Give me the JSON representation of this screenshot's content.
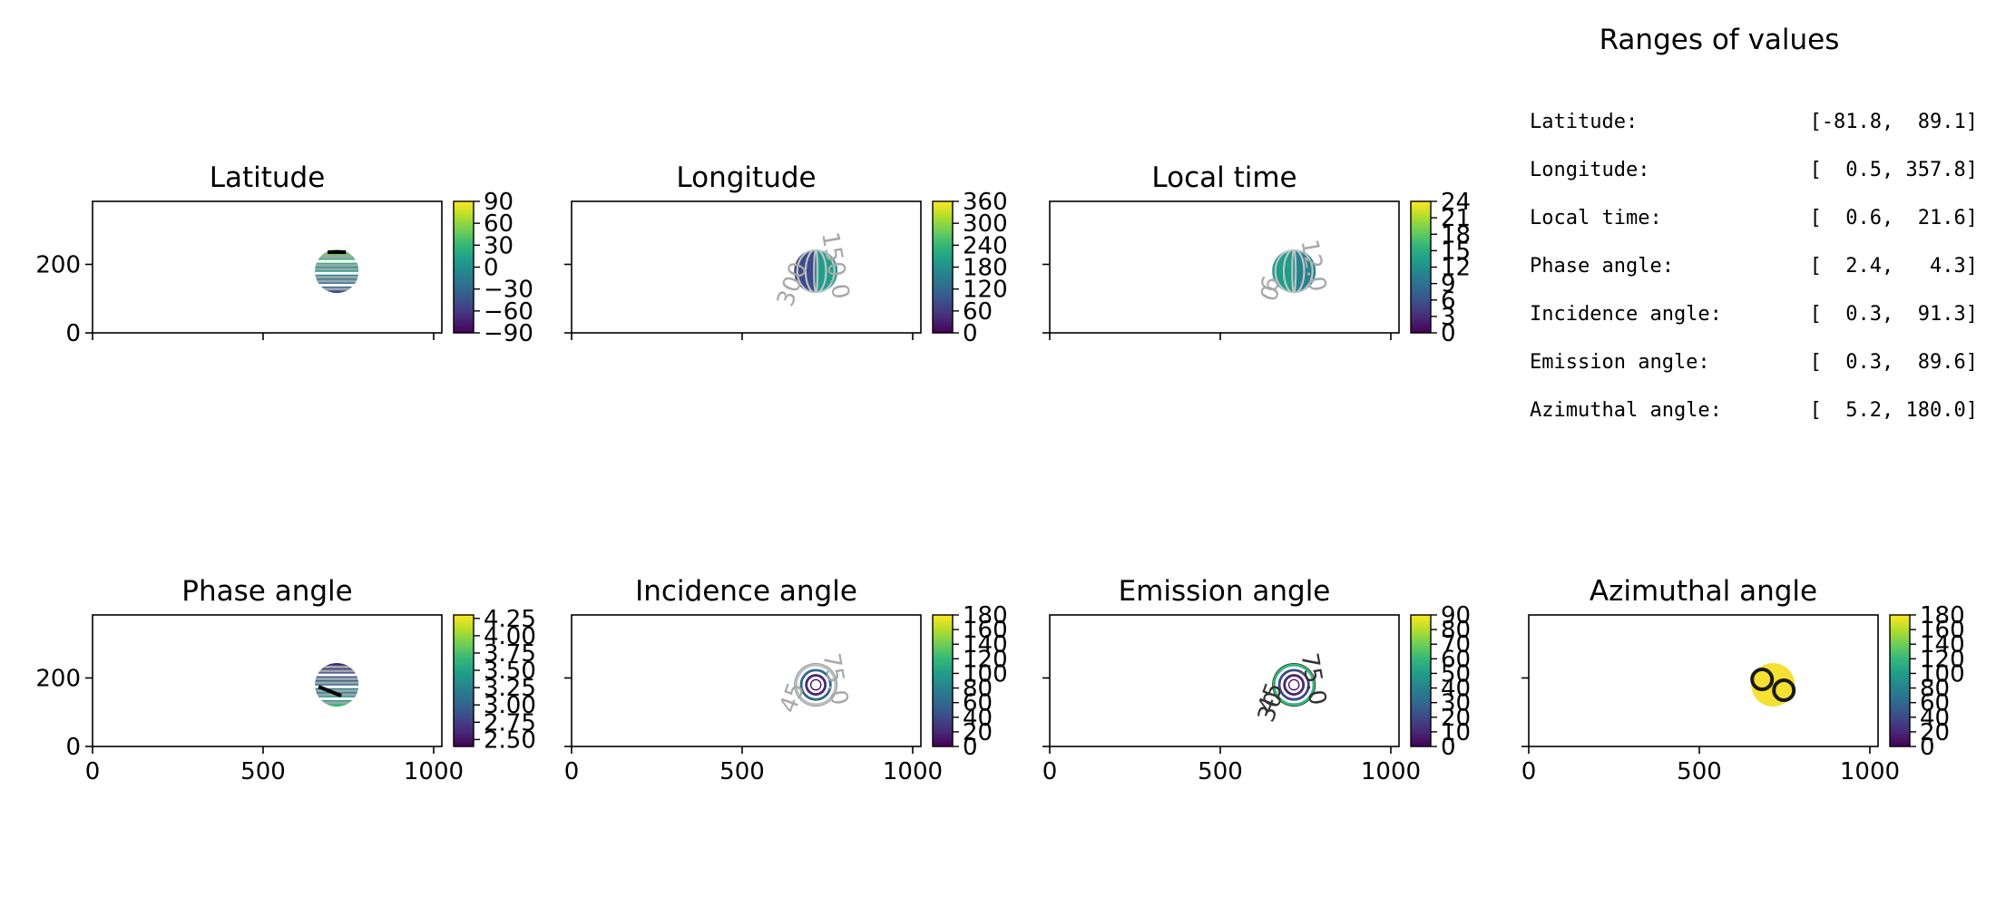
{
  "ranges": {
    "title": "Ranges of values",
    "rows": [
      {
        "label": "Latitude:",
        "min": -81.8,
        "max": 89.1,
        "text": "[-81.8,  89.1]"
      },
      {
        "label": "Longitude:",
        "min": 0.5,
        "max": 357.8,
        "text": "[  0.5, 357.8]"
      },
      {
        "label": "Local time:",
        "min": 0.6,
        "max": 21.6,
        "text": "[  0.6,  21.6]"
      },
      {
        "label": "Phase angle:",
        "min": 2.4,
        "max": 4.3,
        "text": "[  2.4,   4.3]"
      },
      {
        "label": "Incidence angle:",
        "min": 0.3,
        "max": 91.3,
        "text": "[  0.3,  91.3]"
      },
      {
        "label": "Emission angle:",
        "min": 0.3,
        "max": 89.6,
        "text": "[  0.3,  89.6]"
      },
      {
        "label": "Azimuthal angle:",
        "min": 5.2,
        "max": 180.0,
        "text": "[  5.2, 180.0]"
      }
    ]
  },
  "chart_data": [
    {
      "type": "heatmap",
      "title": "Latitude",
      "xlim": [
        0,
        1024
      ],
      "ylim": [
        0,
        384
      ],
      "xticks": [
        "0",
        "500",
        "1000"
      ],
      "yticks": [
        "0",
        "200"
      ],
      "x_ticklabels_visible": false,
      "y_ticklabels_visible": true,
      "disk_center": [
        716,
        180
      ],
      "disk_radius": 64,
      "colorbar": {
        "range": [
          -90,
          90
        ],
        "ticks": [
          "90",
          "60",
          "30",
          "0",
          "−30",
          "−60",
          "−90"
        ]
      },
      "contour_labels": []
    },
    {
      "type": "heatmap",
      "title": "Longitude",
      "xlim": [
        0,
        1024
      ],
      "ylim": [
        0,
        384
      ],
      "xticks": [
        "0",
        "500",
        "1000"
      ],
      "yticks": [
        "0",
        "200"
      ],
      "x_ticklabels_visible": false,
      "y_ticklabels_visible": false,
      "disk_center": [
        716,
        180
      ],
      "disk_radius": 64,
      "colorbar": {
        "range": [
          0,
          360
        ],
        "ticks": [
          "360",
          "300",
          "240",
          "180",
          "120",
          "60",
          "0"
        ]
      },
      "contour_labels": [
        "150.0",
        "300"
      ]
    },
    {
      "type": "heatmap",
      "title": "Local time",
      "xlim": [
        0,
        1024
      ],
      "ylim": [
        0,
        384
      ],
      "xticks": [
        "0",
        "500",
        "1000"
      ],
      "yticks": [
        "0",
        "200"
      ],
      "x_ticklabels_visible": false,
      "y_ticklabels_visible": false,
      "disk_center": [
        716,
        180
      ],
      "disk_radius": 64,
      "colorbar": {
        "range": [
          0,
          24
        ],
        "ticks": [
          "24",
          "21",
          "18",
          "15",
          "12",
          "9",
          "6",
          "3",
          "0"
        ]
      },
      "contour_labels": [
        "12.0",
        "6",
        "0"
      ]
    },
    {
      "type": "heatmap",
      "title": "Phase angle",
      "xlim": [
        0,
        1024
      ],
      "ylim": [
        0,
        384
      ],
      "xticks": [
        "0",
        "500",
        "1000"
      ],
      "yticks": [
        "0",
        "200"
      ],
      "x_ticklabels_visible": true,
      "y_ticklabels_visible": true,
      "disk_center": [
        716,
        180
      ],
      "disk_radius": 64,
      "colorbar": {
        "range": [
          2.4,
          4.3
        ],
        "ticks": [
          "4.25",
          "4.00",
          "3.75",
          "3.50",
          "3.25",
          "3.00",
          "2.75",
          "2.50"
        ]
      },
      "contour_labels": []
    },
    {
      "type": "heatmap",
      "title": "Incidence angle",
      "xlim": [
        0,
        1024
      ],
      "ylim": [
        0,
        384
      ],
      "xticks": [
        "0",
        "500",
        "1000"
      ],
      "yticks": [
        "0",
        "200"
      ],
      "x_ticklabels_visible": true,
      "y_ticklabels_visible": false,
      "disk_center": [
        716,
        180
      ],
      "disk_radius": 64,
      "colorbar": {
        "range": [
          0,
          180
        ],
        "ticks": [
          "180",
          "160",
          "140",
          "120",
          "100",
          "80",
          "60",
          "40",
          "20",
          "0"
        ]
      },
      "contour_labels": [
        "75.0",
        "45"
      ]
    },
    {
      "type": "heatmap",
      "title": "Emission angle",
      "xlim": [
        0,
        1024
      ],
      "ylim": [
        0,
        384
      ],
      "xticks": [
        "0",
        "500",
        "1000"
      ],
      "yticks": [
        "0",
        "200"
      ],
      "x_ticklabels_visible": true,
      "y_ticklabels_visible": false,
      "disk_center": [
        716,
        180
      ],
      "disk_radius": 64,
      "colorbar": {
        "range": [
          0,
          90
        ],
        "ticks": [
          "90",
          "80",
          "70",
          "60",
          "50",
          "40",
          "30",
          "20",
          "10",
          "0"
        ]
      },
      "contour_labels": [
        "75.0",
        "45",
        "30"
      ]
    },
    {
      "type": "heatmap",
      "title": "Azimuthal angle",
      "xlim": [
        0,
        1024
      ],
      "ylim": [
        0,
        384
      ],
      "xticks": [
        "0",
        "500",
        "1000"
      ],
      "yticks": [
        "0",
        "200"
      ],
      "x_ticklabels_visible": true,
      "y_ticklabels_visible": false,
      "disk_center": [
        716,
        180
      ],
      "disk_radius": 64,
      "colorbar": {
        "range": [
          0,
          180
        ],
        "ticks": [
          "180",
          "160",
          "140",
          "120",
          "100",
          "80",
          "60",
          "40",
          "20",
          "0"
        ]
      },
      "contour_labels": []
    }
  ],
  "colors": {
    "viridis": [
      "#440154",
      "#482878",
      "#3e4a89",
      "#31688e",
      "#26828e",
      "#1f9e89",
      "#35b779",
      "#6ece58",
      "#b5de2b",
      "#fde725"
    ],
    "disk_light": "#3aa08a",
    "azimuth_disk": "#f5e033"
  }
}
